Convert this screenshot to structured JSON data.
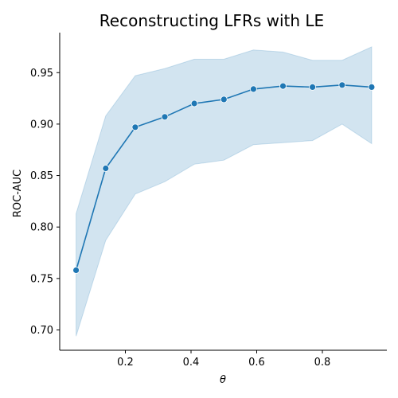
{
  "chart_data": {
    "type": "line",
    "title": "Reconstructing LFRs with LE",
    "xlabel": "θ",
    "ylabel": "ROC-AUC",
    "xlim": [
      0.0,
      1.0
    ],
    "ylim": [
      0.68,
      0.99
    ],
    "xticks": [
      0.2,
      0.4,
      0.6,
      0.8
    ],
    "xtick_labels": [
      "0.2",
      "0.4",
      "0.6",
      "0.8"
    ],
    "yticks": [
      0.7,
      0.75,
      0.8,
      0.85,
      0.9,
      0.95
    ],
    "ytick_labels": [
      "0.70",
      "0.75",
      "0.80",
      "0.85",
      "0.90",
      "0.95"
    ],
    "grid": false,
    "series": [
      {
        "x": [
          0.05,
          0.14,
          0.23,
          0.32,
          0.41,
          0.5,
          0.59,
          0.68,
          0.77,
          0.86,
          0.95
        ],
        "values": [
          0.758,
          0.857,
          0.897,
          0.907,
          0.92,
          0.924,
          0.934,
          0.937,
          0.936,
          0.938,
          0.936
        ],
        "ci_upper": [
          0.813,
          0.908,
          0.947,
          0.954,
          0.963,
          0.963,
          0.972,
          0.97,
          0.962,
          0.962,
          0.975
        ],
        "ci_lower": [
          0.694,
          0.787,
          0.832,
          0.844,
          0.861,
          0.865,
          0.88,
          0.882,
          0.884,
          0.9,
          0.881
        ],
        "color": "#1f77b4",
        "band_color": "#1f77b4"
      }
    ]
  }
}
